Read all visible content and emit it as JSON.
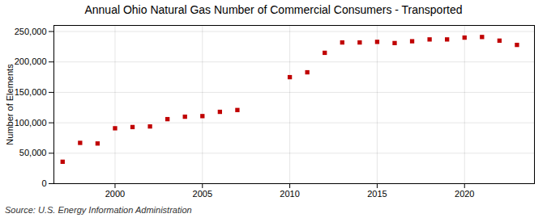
{
  "chart_data": {
    "type": "scatter",
    "title": "Annual Ohio Natural Gas Number of Commercial Consumers - Transported",
    "ylabel": "Number of Elements",
    "annotations": [
      "Source: U.S. Energy Information Administration"
    ],
    "x": [
      1997,
      1998,
      1999,
      2000,
      2001,
      2002,
      2003,
      2004,
      2005,
      2006,
      2007,
      2010,
      2011,
      2012,
      2013,
      2014,
      2015,
      2016,
      2017,
      2018,
      2019,
      2020,
      2021,
      2022,
      2023
    ],
    "values": [
      36000,
      67000,
      66000,
      91000,
      93000,
      94000,
      106000,
      110000,
      111000,
      118000,
      121000,
      175000,
      183000,
      215000,
      232000,
      232000,
      233000,
      231000,
      234000,
      237000,
      237000,
      240000,
      241000,
      235000,
      228000
    ],
    "color": "#c00000",
    "marker": "square",
    "xlim": [
      1996.5,
      2024
    ],
    "ylim": [
      0,
      260000
    ],
    "xticks": [
      2000,
      2005,
      2010,
      2015,
      2020
    ],
    "yticks": [
      0,
      {
        "value": 50000,
        "label": "50,000"
      },
      {
        "value": 100000,
        "label": "100,000"
      },
      {
        "value": 150000,
        "label": "150,000"
      },
      {
        "value": 200000,
        "label": "200,000"
      },
      {
        "value": 250000,
        "label": "250,000"
      }
    ],
    "grid": true
  }
}
